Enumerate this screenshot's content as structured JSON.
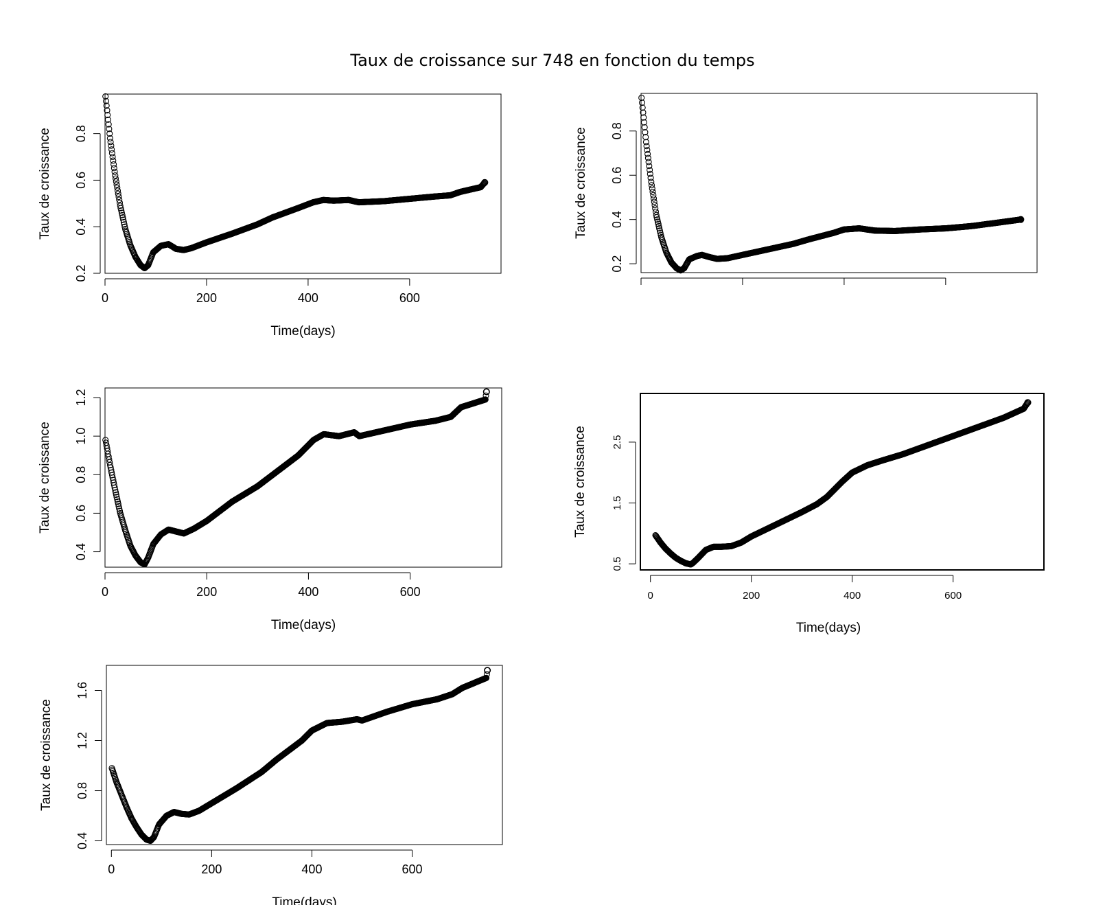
{
  "figure": {
    "title": "Taux de croissance sur 748 en fonction du temps"
  },
  "chart_data": [
    {
      "type": "scatter",
      "xlabel": "Time(days)",
      "ylabel": "Taux de croissance",
      "xlim": [
        0,
        780
      ],
      "ylim": [
        0.2,
        0.97
      ],
      "x_ticks": [
        "0",
        "200",
        "400",
        "600"
      ],
      "y_ticks": [
        "0.2",
        "0.4",
        "0.6",
        "0.8"
      ],
      "curve": [
        [
          1,
          0.96
        ],
        [
          10,
          0.78
        ],
        [
          20,
          0.62
        ],
        [
          30,
          0.49
        ],
        [
          40,
          0.39
        ],
        [
          50,
          0.32
        ],
        [
          60,
          0.27
        ],
        [
          70,
          0.235
        ],
        [
          78,
          0.222
        ],
        [
          85,
          0.235
        ],
        [
          95,
          0.29
        ],
        [
          110,
          0.318
        ],
        [
          125,
          0.325
        ],
        [
          140,
          0.305
        ],
        [
          155,
          0.3
        ],
        [
          170,
          0.308
        ],
        [
          200,
          0.333
        ],
        [
          250,
          0.37
        ],
        [
          300,
          0.41
        ],
        [
          330,
          0.44
        ],
        [
          380,
          0.48
        ],
        [
          410,
          0.505
        ],
        [
          430,
          0.515
        ],
        [
          450,
          0.512
        ],
        [
          480,
          0.515
        ],
        [
          500,
          0.505
        ],
        [
          550,
          0.51
        ],
        [
          600,
          0.52
        ],
        [
          650,
          0.53
        ],
        [
          680,
          0.535
        ],
        [
          700,
          0.55
        ],
        [
          740,
          0.57
        ],
        [
          748,
          0.59
        ]
      ]
    },
    {
      "type": "scatter",
      "xlabel": "",
      "ylabel": "Taux de croissance",
      "xlim": [
        0,
        780
      ],
      "ylim": [
        0.16,
        0.97
      ],
      "x_ticks": [
        "",
        "",
        "",
        ""
      ],
      "y_ticks": [
        "0.2",
        "0.4",
        "0.6",
        "0.8"
      ],
      "curve": [
        [
          1,
          0.95
        ],
        [
          10,
          0.75
        ],
        [
          20,
          0.57
        ],
        [
          30,
          0.42
        ],
        [
          40,
          0.32
        ],
        [
          50,
          0.25
        ],
        [
          60,
          0.205
        ],
        [
          70,
          0.18
        ],
        [
          78,
          0.17
        ],
        [
          85,
          0.18
        ],
        [
          95,
          0.22
        ],
        [
          110,
          0.235
        ],
        [
          120,
          0.24
        ],
        [
          135,
          0.23
        ],
        [
          150,
          0.222
        ],
        [
          170,
          0.225
        ],
        [
          200,
          0.24
        ],
        [
          250,
          0.265
        ],
        [
          300,
          0.29
        ],
        [
          330,
          0.31
        ],
        [
          380,
          0.34
        ],
        [
          400,
          0.355
        ],
        [
          430,
          0.36
        ],
        [
          460,
          0.35
        ],
        [
          500,
          0.348
        ],
        [
          550,
          0.355
        ],
        [
          600,
          0.36
        ],
        [
          650,
          0.37
        ],
        [
          700,
          0.385
        ],
        [
          748,
          0.4
        ]
      ]
    },
    {
      "type": "scatter",
      "xlabel": "Time(days)",
      "ylabel": "Taux de croissance",
      "xlim": [
        0,
        780
      ],
      "ylim": [
        0.32,
        1.25
      ],
      "x_ticks": [
        "0",
        "200",
        "400",
        "600"
      ],
      "y_ticks": [
        "0.4",
        "0.6",
        "0.8",
        "1.0",
        "1.2"
      ],
      "curve": [
        [
          1,
          0.98
        ],
        [
          10,
          0.85
        ],
        [
          20,
          0.72
        ],
        [
          30,
          0.6
        ],
        [
          40,
          0.51
        ],
        [
          50,
          0.43
        ],
        [
          60,
          0.38
        ],
        [
          70,
          0.345
        ],
        [
          78,
          0.335
        ],
        [
          85,
          0.37
        ],
        [
          95,
          0.44
        ],
        [
          110,
          0.49
        ],
        [
          125,
          0.515
        ],
        [
          140,
          0.505
        ],
        [
          155,
          0.495
        ],
        [
          175,
          0.52
        ],
        [
          200,
          0.56
        ],
        [
          250,
          0.66
        ],
        [
          300,
          0.74
        ],
        [
          330,
          0.8
        ],
        [
          380,
          0.9
        ],
        [
          410,
          0.98
        ],
        [
          430,
          1.01
        ],
        [
          460,
          1.0
        ],
        [
          490,
          1.02
        ],
        [
          500,
          1.0
        ],
        [
          550,
          1.03
        ],
        [
          600,
          1.06
        ],
        [
          650,
          1.08
        ],
        [
          680,
          1.1
        ],
        [
          700,
          1.15
        ],
        [
          748,
          1.19
        ],
        [
          750,
          1.23
        ]
      ]
    },
    {
      "type": "scatter",
      "xlabel": "Time(days)",
      "ylabel": "Taux de croissance",
      "xlim": [
        -20,
        780
      ],
      "ylim": [
        0.4,
        3.3
      ],
      "x_ticks": [
        "0",
        "200",
        "400",
        "600"
      ],
      "y_ticks": [
        "0.5",
        "1.5",
        "2.5"
      ],
      "curve": [
        [
          10,
          0.97
        ],
        [
          20,
          0.85
        ],
        [
          30,
          0.75
        ],
        [
          40,
          0.67
        ],
        [
          50,
          0.6
        ],
        [
          60,
          0.55
        ],
        [
          70,
          0.51
        ],
        [
          80,
          0.49
        ],
        [
          85,
          0.52
        ],
        [
          95,
          0.6
        ],
        [
          110,
          0.73
        ],
        [
          125,
          0.78
        ],
        [
          140,
          0.78
        ],
        [
          160,
          0.79
        ],
        [
          180,
          0.85
        ],
        [
          200,
          0.95
        ],
        [
          250,
          1.15
        ],
        [
          300,
          1.35
        ],
        [
          330,
          1.48
        ],
        [
          350,
          1.6
        ],
        [
          380,
          1.85
        ],
        [
          400,
          2.0
        ],
        [
          430,
          2.12
        ],
        [
          460,
          2.2
        ],
        [
          500,
          2.3
        ],
        [
          550,
          2.45
        ],
        [
          600,
          2.6
        ],
        [
          650,
          2.75
        ],
        [
          700,
          2.9
        ],
        [
          740,
          3.05
        ],
        [
          748,
          3.15
        ]
      ]
    },
    {
      "type": "scatter",
      "xlabel": "Time(days)",
      "ylabel": "Taux de croissance",
      "xlim": [
        -10,
        780
      ],
      "ylim": [
        0.37,
        1.8
      ],
      "x_ticks": [
        "0",
        "200",
        "400",
        "600"
      ],
      "y_ticks": [
        "0.4",
        "0.8",
        "1.2",
        "1.6"
      ],
      "curve": [
        [
          1,
          0.98
        ],
        [
          10,
          0.87
        ],
        [
          20,
          0.77
        ],
        [
          30,
          0.67
        ],
        [
          40,
          0.58
        ],
        [
          50,
          0.51
        ],
        [
          60,
          0.45
        ],
        [
          70,
          0.41
        ],
        [
          78,
          0.4
        ],
        [
          85,
          0.43
        ],
        [
          95,
          0.53
        ],
        [
          110,
          0.6
        ],
        [
          125,
          0.63
        ],
        [
          140,
          0.615
        ],
        [
          155,
          0.61
        ],
        [
          175,
          0.64
        ],
        [
          200,
          0.7
        ],
        [
          250,
          0.82
        ],
        [
          300,
          0.95
        ],
        [
          330,
          1.05
        ],
        [
          380,
          1.2
        ],
        [
          400,
          1.28
        ],
        [
          430,
          1.34
        ],
        [
          460,
          1.35
        ],
        [
          490,
          1.37
        ],
        [
          500,
          1.36
        ],
        [
          550,
          1.43
        ],
        [
          600,
          1.49
        ],
        [
          650,
          1.53
        ],
        [
          680,
          1.57
        ],
        [
          700,
          1.62
        ],
        [
          748,
          1.7
        ],
        [
          750,
          1.76
        ]
      ]
    }
  ]
}
